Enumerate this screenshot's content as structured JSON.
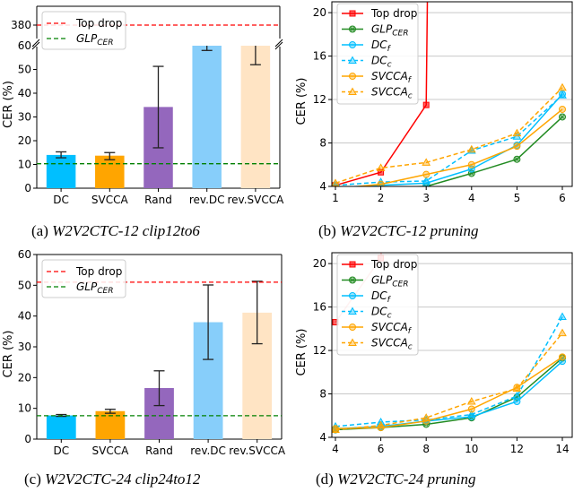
{
  "chart_data": [
    {
      "id": "a",
      "type": "bar",
      "caption_prefix": "(a)",
      "caption_title": "W2V2CTC-12 clip12to6",
      "ylabel": "CER (%)",
      "categories": [
        "DC",
        "SVCCA",
        "Rand",
        "rev.DC",
        "rev.SVCCA"
      ],
      "values": [
        14.0,
        13.7,
        34.2,
        60,
        60
      ],
      "error_low": [
        12.8,
        12.0,
        17.0,
        58.0,
        52.0
      ],
      "error_high": [
        15.3,
        15.0,
        51.3,
        60,
        60
      ],
      "bar_colors": [
        "#00BFFF",
        "#FFA500",
        "#9467BD",
        "#87CEFA",
        "#FFE4C4"
      ],
      "ylim": [
        0,
        60
      ],
      "yticks": [
        0,
        10,
        20,
        30,
        40,
        50,
        60
      ],
      "broken_axis": {
        "upper_tick": 380,
        "lower_top": 60
      },
      "hlines": [
        {
          "name": "Top drop",
          "value": 380,
          "color": "#FF0000",
          "style": "dashed"
        },
        {
          "name": "GLP",
          "sub": "CER",
          "value": 10.3,
          "color": "#008000",
          "style": "dashed"
        }
      ],
      "legend": [
        {
          "label": "Top drop",
          "color": "#FF0000"
        },
        {
          "label": "GLP",
          "sub": "CER",
          "color": "#008000"
        }
      ],
      "legend_position": "upper-left"
    },
    {
      "id": "b",
      "type": "line",
      "caption_prefix": "(b)",
      "caption_title": "W2V2CTC-12 pruning",
      "ylabel": "CER (%)",
      "x": [
        1,
        2,
        3,
        4,
        5,
        6
      ],
      "xticks": [
        "1",
        "2",
        "3",
        "4",
        "5",
        "6"
      ],
      "ylim": [
        4,
        21
      ],
      "yticks": [
        4,
        8,
        12,
        16,
        20
      ],
      "grid": "horizontal",
      "series": [
        {
          "name": "Top drop",
          "sub": "",
          "color": "#FF0000",
          "dash": false,
          "marker": "square",
          "values": [
            4.1,
            5.3,
            11.5,
            380,
            null,
            null
          ]
        },
        {
          "name": "GLP",
          "sub": "CER",
          "color": "#228B22",
          "dash": false,
          "marker": "circle-x",
          "values": [
            3.7,
            3.9,
            4.0,
            5.2,
            6.5,
            10.4
          ]
        },
        {
          "name": "DC",
          "sub": "f",
          "color": "#00BFFF",
          "dash": false,
          "marker": "circle",
          "values": [
            3.9,
            4.1,
            4.3,
            5.6,
            7.8,
            12.5
          ]
        },
        {
          "name": "DC",
          "sub": "c",
          "color": "#00BFFF",
          "dash": true,
          "marker": "triangle",
          "values": [
            4.1,
            4.4,
            4.5,
            7.3,
            8.6,
            12.4
          ]
        },
        {
          "name": "SVCCA",
          "sub": "f",
          "color": "#FFA500",
          "dash": false,
          "marker": "circle",
          "values": [
            3.8,
            4.2,
            5.1,
            6.0,
            7.7,
            11.1
          ]
        },
        {
          "name": "SVCCA",
          "sub": "c",
          "color": "#FFA500",
          "dash": true,
          "marker": "triangle",
          "values": [
            4.3,
            5.7,
            6.2,
            7.4,
            8.9,
            13.1
          ]
        }
      ],
      "legend_position": "upper-left"
    },
    {
      "id": "c",
      "type": "bar",
      "caption_prefix": "(c)",
      "caption_title": "W2V2CTC-24 clip24to12",
      "ylabel": "CER (%)",
      "categories": [
        "DC",
        "SVCCA",
        "Rand",
        "rev.DC",
        "rev.SVCCA"
      ],
      "values": [
        7.7,
        9.1,
        16.6,
        38.0,
        41.1
      ],
      "error_low": [
        7.4,
        8.4,
        10.9,
        25.9,
        31.0
      ],
      "error_high": [
        8.0,
        9.7,
        22.2,
        50.1,
        51.3
      ],
      "bar_colors": [
        "#00BFFF",
        "#FFA500",
        "#9467BD",
        "#87CEFA",
        "#FFE4C4"
      ],
      "ylim": [
        0,
        60
      ],
      "yticks": [
        0,
        10,
        20,
        30,
        40,
        50,
        60
      ],
      "hlines": [
        {
          "name": "Top drop",
          "value": 51.0,
          "color": "#FF0000",
          "style": "dashed"
        },
        {
          "name": "GLP",
          "sub": "CER",
          "value": 7.6,
          "color": "#008000",
          "style": "dashed"
        }
      ],
      "legend": [
        {
          "label": "Top drop",
          "color": "#FF0000"
        },
        {
          "label": "GLP",
          "sub": "CER",
          "color": "#008000"
        }
      ],
      "legend_position": "upper-left"
    },
    {
      "id": "d",
      "type": "line",
      "caption_prefix": "(d)",
      "caption_title": "W2V2CTC-24 pruning",
      "ylabel": "CER (%)",
      "x": [
        4,
        6,
        8,
        10,
        12,
        14
      ],
      "xticks": [
        "4",
        "6",
        "8",
        "10",
        "12",
        "14"
      ],
      "ylim": [
        4,
        21
      ],
      "yticks": [
        4,
        8,
        12,
        16,
        20
      ],
      "grid": "horizontal",
      "series": [
        {
          "name": "Top drop",
          "sub": "",
          "color": "#FF0000",
          "dash": false,
          "marker": "square",
          "values": [
            14.6,
            20.5,
            80,
            null,
            null,
            null
          ]
        },
        {
          "name": "GLP",
          "sub": "CER",
          "color": "#228B22",
          "dash": false,
          "marker": "circle-x",
          "values": [
            4.7,
            4.9,
            5.2,
            5.8,
            7.7,
            11.3
          ]
        },
        {
          "name": "DC",
          "sub": "f",
          "color": "#00BFFF",
          "dash": false,
          "marker": "circle",
          "values": [
            4.8,
            5.0,
            5.5,
            5.9,
            7.3,
            11.0
          ]
        },
        {
          "name": "DC",
          "sub": "c",
          "color": "#00BFFF",
          "dash": true,
          "marker": "triangle",
          "values": [
            5.0,
            5.4,
            5.6,
            6.1,
            7.8,
            15.1
          ]
        },
        {
          "name": "SVCCA",
          "sub": "f",
          "color": "#FFA500",
          "dash": false,
          "marker": "circle",
          "values": [
            4.8,
            4.9,
            5.5,
            6.6,
            8.6,
            11.4
          ]
        },
        {
          "name": "SVCCA",
          "sub": "c",
          "color": "#FFA500",
          "dash": true,
          "marker": "triangle",
          "values": [
            4.7,
            5.1,
            5.8,
            7.3,
            8.5,
            13.6
          ]
        }
      ],
      "legend_position": "upper-left"
    }
  ]
}
